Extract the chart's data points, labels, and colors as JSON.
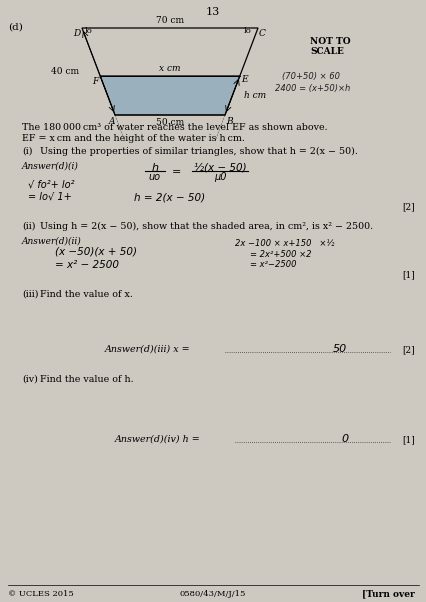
{
  "page_number": "13",
  "background_color": "#cdc8c0",
  "part_label": "(d)",
  "not_to_scale_line1": "NOT TO",
  "not_to_scale_line2": "SCALE",
  "trap_label_top": "70 cm",
  "trap_label_bottom": "50 cm",
  "trap_label_left": "40 cm",
  "trap_label_water_width": "x cm",
  "trap_label_water_height": "h cm",
  "handwritten_note1": "(70+50) × 60",
  "handwritten_note2": "2400 = (x+50)×h",
  "problem_text1": "The 180 000 cm³ of water reaches the level EF as shown above.",
  "problem_text2": "EF = x cm and the height of the water is h cm.",
  "part_i_label": "(i)",
  "part_i_text": "Using the properties of similar triangles, show that h = 2(x − 50).",
  "answer_i_label": "Answer(d)(i)",
  "answer_i_frac_num": "h",
  "answer_i_frac_den": "uo",
  "answer_i_eq": "=",
  "answer_i_rhs_num": "½(x − 50)",
  "answer_i_rhs_den": "μ0",
  "answer_i_left1": "√ fo²+ lo²",
  "answer_i_left2": "= lo√ 1+",
  "answer_i_main": "h = 2(x − 50)",
  "marks_i": "[2]",
  "part_ii_label": "(ii)",
  "part_ii_text": "Using h = 2(x − 50), show that the shaded area, in cm², is x² − 2500.",
  "answer_ii_label": "Answer(d)(ii)",
  "answer_ii_right1": "2x −100 × x+150   ×½",
  "answer_ii_right2": "= 2x²+500 ×2",
  "answer_ii_right3": "= x²−2500",
  "answer_ii_left1": "(x −50)(x + 50)",
  "answer_ii_left2": "= x² − 2500",
  "marks_ii": "[1]",
  "part_iii_label": "(iii)",
  "part_iii_text": "Find the value of x.",
  "answer_iii_label": "Answer(d)(iii) x =",
  "answer_iii_value": "50",
  "marks_iii": "[2]",
  "part_iv_label": "(iv)",
  "part_iv_text": "Find the value of h.",
  "answer_iv_label": "Answer(d)(iv) h =",
  "answer_iv_value": "0",
  "marks_iv": "[1]",
  "footer_left": "© UCLES 2015",
  "footer_center": "0580/43/M/J/15",
  "footer_right": "[Turn over"
}
